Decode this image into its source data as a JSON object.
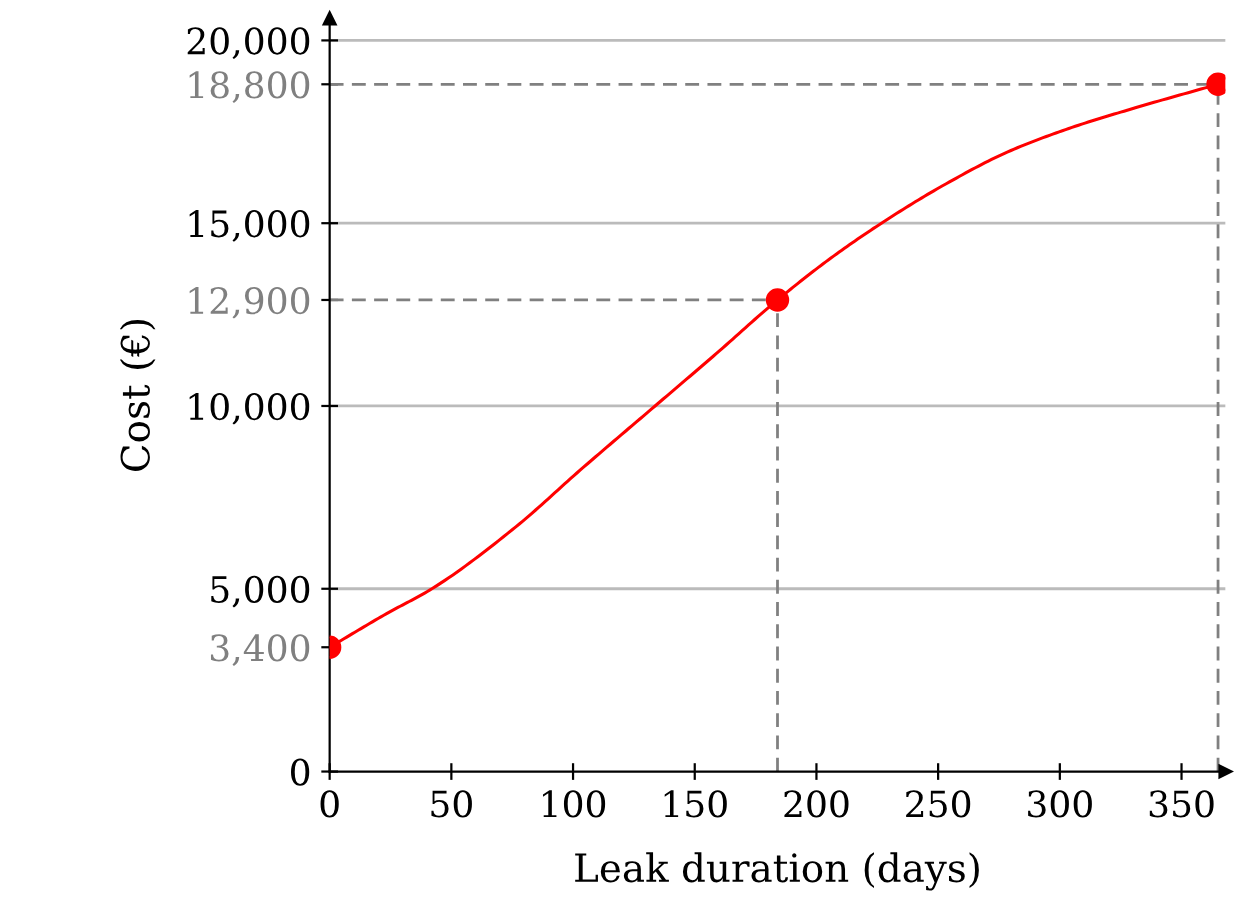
{
  "chart_data": {
    "type": "line",
    "xlabel": "Leak duration (days)",
    "ylabel": "Cost (€)",
    "xlim": [
      0,
      368
    ],
    "ylim": [
      0,
      20600
    ],
    "xticks": [
      0,
      50,
      100,
      150,
      200,
      250,
      300,
      350
    ],
    "yticks": [
      {
        "value": 0,
        "label": "0"
      },
      {
        "value": 3400,
        "label": "3,400"
      },
      {
        "value": 5000,
        "label": "5,000"
      },
      {
        "value": 10000,
        "label": "10,000"
      },
      {
        "value": 12900,
        "label": "12,900"
      },
      {
        "value": 15000,
        "label": "15,000"
      },
      {
        "value": 18800,
        "label": "18,800"
      },
      {
        "value": 20000,
        "label": "20,000"
      }
    ],
    "grid": "y",
    "series": [
      {
        "color": "#ff0000",
        "marker": "none",
        "line_style": "solid",
        "x": [
          0,
          23.4,
          42,
          76.6,
          103,
          133.7,
          157.6,
          184,
          205,
          226.7,
          252,
          278.6,
          305,
          331.7,
          365
        ],
        "values": [
          3400,
          4320,
          5000,
          6700,
          8250,
          10000,
          11360,
          12900,
          14000,
          15000,
          16030,
          16950,
          17620,
          18170,
          18800
        ]
      },
      {
        "type": "scatter",
        "color": "#ff0000",
        "marker": "circle",
        "x": [
          0,
          184,
          365
        ],
        "values": [
          3400,
          12900,
          18800
        ]
      }
    ],
    "ref_lines": [
      {
        "axis": "y",
        "value": 12900,
        "color": "#808080",
        "line_style": "dashed"
      },
      {
        "axis": "x",
        "value": 184,
        "color": "#808080",
        "line_style": "dashed"
      },
      {
        "axis": "y",
        "value": 18800,
        "color": "#808080",
        "line_style": "dashed"
      },
      {
        "axis": "x",
        "value": 365,
        "color": "#808080",
        "line_style": "dashed"
      }
    ]
  }
}
